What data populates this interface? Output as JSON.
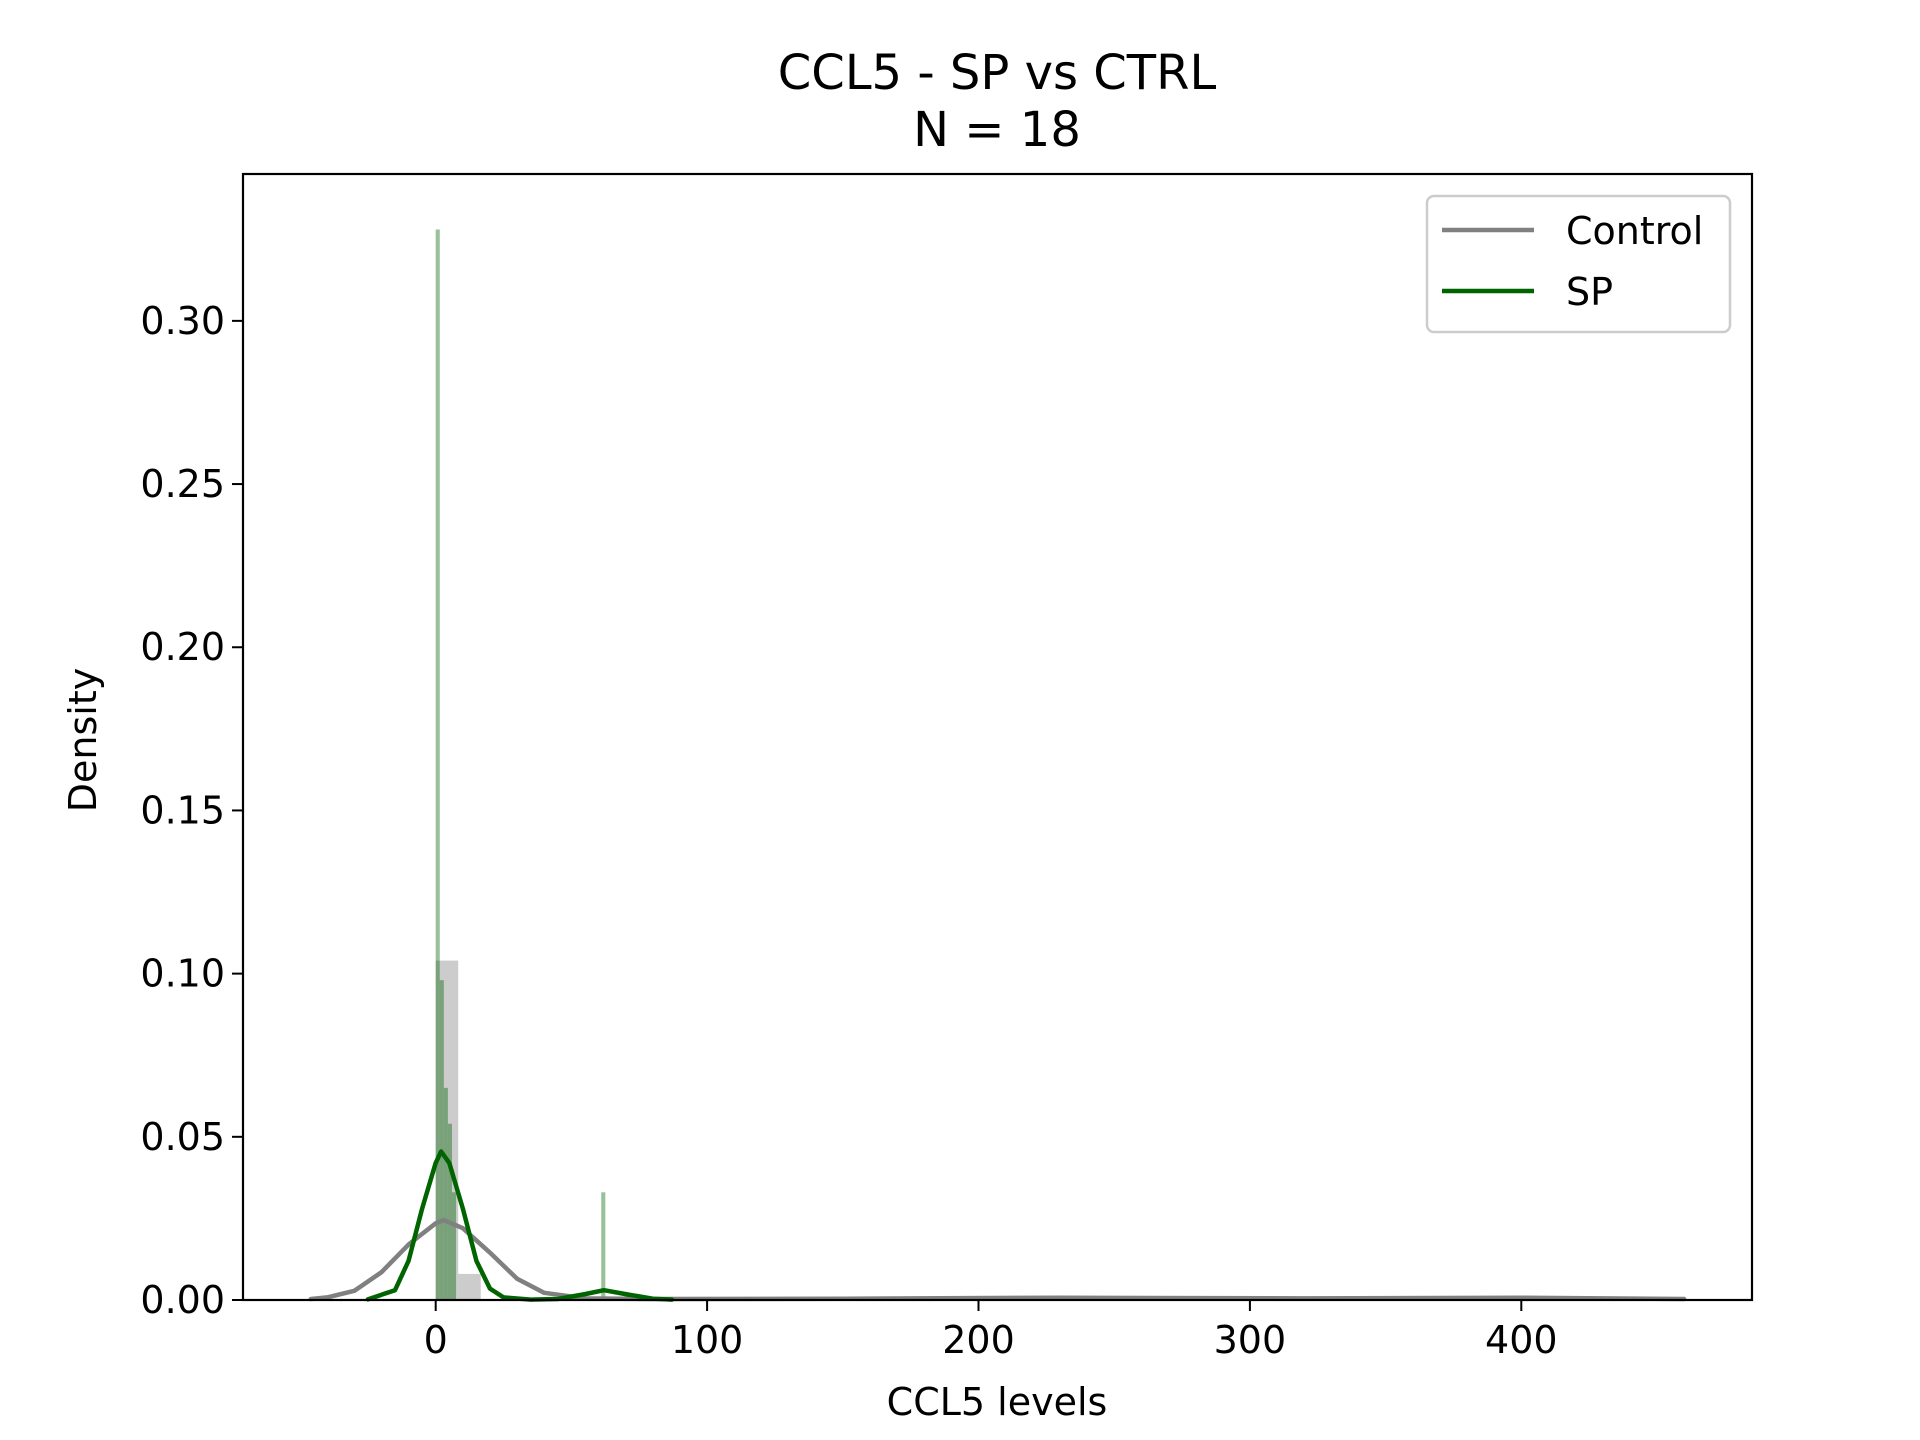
{
  "chart_data": {
    "type": "histogram+kde",
    "title": "CCL5 - SP vs CTRL",
    "subtitle": "N = 18",
    "xlabel": "CCL5 levels",
    "ylabel": "Density",
    "xlim": [
      -71,
      485
    ],
    "ylim": [
      0,
      0.345
    ],
    "x_ticks": [
      0,
      100,
      200,
      300,
      400
    ],
    "x_tick_labels": [
      "0",
      "100",
      "200",
      "300",
      "400"
    ],
    "y_ticks": [
      0.0,
      0.05,
      0.1,
      0.15,
      0.2,
      0.25,
      0.3
    ],
    "y_tick_labels": [
      "0.00",
      "0.05",
      "0.10",
      "0.15",
      "0.20",
      "0.25",
      "0.30"
    ],
    "grid": false,
    "legend_position": "top-right",
    "series": [
      {
        "name": "Control",
        "color": "#808080",
        "hist_alpha": 0.4,
        "hist_bins": [
          {
            "x0": 0,
            "x1": 8.3,
            "density": 0.104
          },
          {
            "x0": 8.3,
            "x1": 16.6,
            "density": 0.008
          }
        ],
        "kde": [
          [
            -46,
            0.0003
          ],
          [
            -40,
            0.0008
          ],
          [
            -30,
            0.0028
          ],
          [
            -20,
            0.0085
          ],
          [
            -10,
            0.017
          ],
          [
            0,
            0.0235
          ],
          [
            3,
            0.0245
          ],
          [
            10,
            0.022
          ],
          [
            20,
            0.0145
          ],
          [
            30,
            0.0065
          ],
          [
            40,
            0.0022
          ],
          [
            55,
            0.0005
          ],
          [
            80,
            0.0003
          ],
          [
            150,
            0.0004
          ],
          [
            230,
            0.0007
          ],
          [
            320,
            0.0005
          ],
          [
            400,
            0.0007
          ],
          [
            460,
            0.0003
          ]
        ]
      },
      {
        "name": "SP",
        "color": "#006400",
        "hist_alpha": 0.4,
        "hist_bins": [
          {
            "x0": 0,
            "x1": 1.5,
            "density": 0.328
          },
          {
            "x0": 1.5,
            "x1": 3.0,
            "density": 0.098
          },
          {
            "x0": 3.0,
            "x1": 4.5,
            "density": 0.065
          },
          {
            "x0": 4.5,
            "x1": 6.0,
            "density": 0.054
          },
          {
            "x0": 6.0,
            "x1": 7.5,
            "density": 0.033
          },
          {
            "x0": 61,
            "x1": 62.5,
            "density": 0.033
          }
        ],
        "kde": [
          [
            -25,
            0.0002
          ],
          [
            -15,
            0.003
          ],
          [
            -10,
            0.012
          ],
          [
            -5,
            0.028
          ],
          [
            0,
            0.042
          ],
          [
            2,
            0.0455
          ],
          [
            5,
            0.042
          ],
          [
            10,
            0.028
          ],
          [
            15,
            0.012
          ],
          [
            20,
            0.0035
          ],
          [
            25,
            0.0008
          ],
          [
            35,
            0.0001
          ],
          [
            45,
            0.0003
          ],
          [
            55,
            0.0018
          ],
          [
            62,
            0.003
          ],
          [
            70,
            0.0018
          ],
          [
            80,
            0.0004
          ],
          [
            87,
            0.0001
          ]
        ]
      }
    ]
  }
}
